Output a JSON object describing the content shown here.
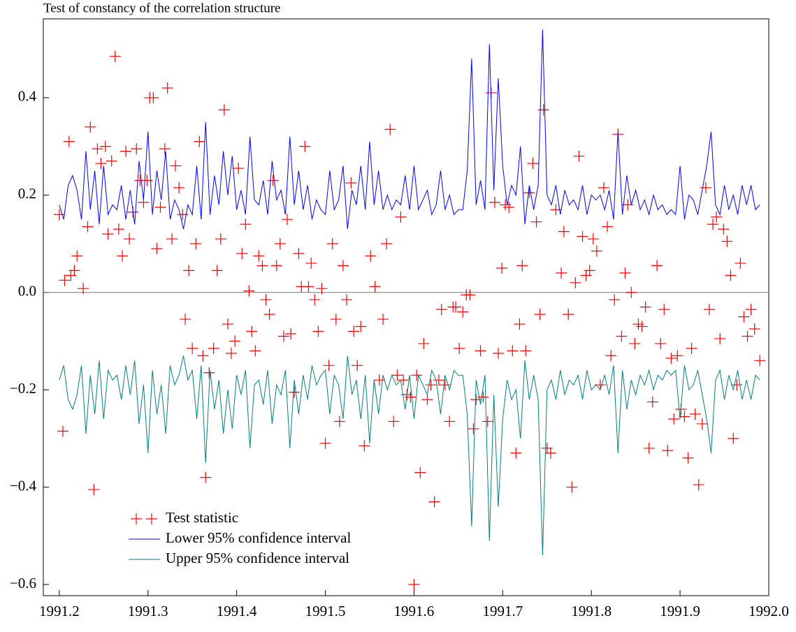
{
  "chart_data": {
    "type": "line",
    "title": "Test of constancy of the correlation structure",
    "xlim": [
      1991.182,
      1992.0
    ],
    "ylim": [
      -0.623,
      0.562
    ],
    "xticks": [
      1991.2,
      1991.3,
      1991.4,
      1991.5,
      1991.6,
      1991.7,
      1991.8,
      1991.9,
      {
        "value": 1992,
        "label": "1992.0"
      }
    ],
    "yticks": [
      {
        "value": -0.6,
        "label": "−0.6"
      },
      {
        "value": -0.4,
        "label": "−0.4"
      },
      {
        "value": -0.2,
        "label": "−0.2"
      },
      {
        "value": 0,
        "label": "0.0"
      },
      0.2,
      0.4
    ],
    "zero_line": true,
    "legend": "lower left",
    "x": [
      1991.2,
      1991.205,
      1991.21,
      1991.215,
      1991.22,
      1991.225,
      1991.23,
      1991.235,
      1991.24,
      1991.245,
      1991.25,
      1991.255,
      1991.26,
      1991.265,
      1991.27,
      1991.275,
      1991.28,
      1991.285,
      1991.29,
      1991.295,
      1991.3,
      1991.305,
      1991.31,
      1991.315,
      1991.32,
      1991.325,
      1991.33,
      1991.335,
      1991.34,
      1991.345,
      1991.35,
      1991.355,
      1991.36,
      1991.365,
      1991.37,
      1991.375,
      1991.38,
      1991.385,
      1991.39,
      1991.395,
      1991.4,
      1991.405,
      1991.41,
      1991.415,
      1991.42,
      1991.425,
      1991.43,
      1991.435,
      1991.44,
      1991.445,
      1991.45,
      1991.455,
      1991.46,
      1991.465,
      1991.47,
      1991.475,
      1991.48,
      1991.485,
      1991.49,
      1991.495,
      1991.5,
      1991.505,
      1991.51,
      1991.515,
      1991.52,
      1991.525,
      1991.53,
      1991.535,
      1991.54,
      1991.545,
      1991.55,
      1991.555,
      1991.56,
      1991.565,
      1991.57,
      1991.575,
      1991.58,
      1991.585,
      1991.59,
      1991.595,
      1991.6,
      1991.605,
      1991.61,
      1991.615,
      1991.62,
      1991.625,
      1991.63,
      1991.635,
      1991.64,
      1991.645,
      1991.65,
      1991.655,
      1991.66,
      1991.665,
      1991.67,
      1991.675,
      1991.68,
      1991.685,
      1991.69,
      1991.695,
      1991.7,
      1991.705,
      1991.71,
      1991.715,
      1991.72,
      1991.725,
      1991.73,
      1991.735,
      1991.74,
      1991.745,
      1991.75,
      1991.755,
      1991.76,
      1991.765,
      1991.77,
      1991.775,
      1991.78,
      1991.785,
      1991.79,
      1991.795,
      1991.8,
      1991.805,
      1991.81,
      1991.815,
      1991.82,
      1991.825,
      1991.83,
      1991.835,
      1991.84,
      1991.845,
      1991.85,
      1991.855,
      1991.86,
      1991.865,
      1991.87,
      1991.875,
      1991.88,
      1991.885,
      1991.89,
      1991.895,
      1991.9,
      1991.905,
      1991.91,
      1991.915,
      1991.92,
      1991.925,
      1991.93,
      1991.935,
      1991.94,
      1991.945,
      1991.95,
      1991.955,
      1991.96,
      1991.965,
      1991.97,
      1991.975,
      1991.98,
      1991.985,
      1991.99
    ],
    "series": [
      {
        "name": "Test statistic",
        "color": "#ff0000",
        "marker": "+",
        "x": [
          1991.2,
          1991.204,
          1991.206,
          1991.211,
          1991.213,
          1991.217,
          1991.22,
          1991.227,
          1991.232,
          1991.235,
          1991.239,
          1991.243,
          1991.247,
          1991.252,
          1991.255,
          1991.259,
          1991.263,
          1991.267,
          1991.271,
          1991.275,
          1991.279,
          1991.283,
          1991.287,
          1991.291,
          1991.295,
          1991.299,
          1991.302,
          1991.306,
          1991.31,
          1991.314,
          1991.319,
          1991.322,
          1991.327,
          1991.331,
          1991.335,
          1991.339,
          1991.342,
          1991.346,
          1991.35,
          1991.354,
          1991.358,
          1991.362,
          1991.365,
          1991.369,
          1991.374,
          1991.378,
          1991.382,
          1991.386,
          1991.39,
          1991.394,
          1991.398,
          1991.402,
          1991.406,
          1991.41,
          1991.414,
          1991.417,
          1991.421,
          1991.425,
          1991.429,
          1991.433,
          1991.437,
          1991.441,
          1991.445,
          1991.449,
          1991.453,
          1991.457,
          1991.461,
          1991.465,
          1991.47,
          1991.473,
          1991.477,
          1991.481,
          1991.484,
          1991.488,
          1991.492,
          1991.496,
          1991.5,
          1991.504,
          1991.508,
          1991.512,
          1991.516,
          1991.52,
          1991.524,
          1991.529,
          1991.532,
          1991.536,
          1991.54,
          1991.544,
          1991.551,
          1991.556,
          1991.561,
          1991.565,
          1991.569,
          1991.573,
          1991.577,
          1991.581,
          1991.585,
          1991.588,
          1991.592,
          1991.596,
          1991.6,
          1991.603,
          1991.607,
          1991.611,
          1991.615,
          1991.619,
          1991.623,
          1991.628,
          1991.631,
          1991.635,
          1991.64,
          1991.644,
          1991.647,
          1991.651,
          1991.655,
          1991.659,
          1991.663,
          1991.667,
          1991.67,
          1991.675,
          1991.678,
          1991.683,
          1991.687,
          1991.691,
          1991.695,
          1991.699,
          1991.703,
          1991.707,
          1991.711,
          1991.715,
          1991.719,
          1991.722,
          1991.726,
          1991.73,
          1991.734,
          1991.738,
          1991.742,
          1991.746,
          1991.75,
          1991.754,
          1991.76,
          1991.766,
          1991.769,
          1991.774,
          1991.778,
          1991.782,
          1991.786,
          1991.79,
          1991.794,
          1991.798,
          1991.802,
          1991.806,
          1991.81,
          1991.814,
          1991.818,
          1991.822,
          1991.826,
          1991.83,
          1991.834,
          1991.838,
          1991.841,
          1991.845,
          1991.849,
          1991.853,
          1991.857,
          1991.861,
          1991.865,
          1991.869,
          1991.874,
          1991.878,
          1991.882,
          1991.886,
          1991.89,
          1991.893,
          1991.897,
          1991.901,
          1991.905,
          1991.909,
          1991.913,
          1991.917,
          1991.921,
          1991.925,
          1991.929,
          1991.933,
          1991.937,
          1991.941,
          1991.945,
          1991.949,
          1991.953,
          1991.957,
          1991.96,
          1991.964,
          1991.968,
          1991.972,
          1991.976,
          1991.98,
          1991.984,
          1991.99
        ],
        "values": [
          0.16,
          -0.285,
          0.025,
          0.31,
          0.035,
          0.045,
          0.075,
          0.008,
          0.135,
          0.34,
          -0.405,
          0.295,
          0.265,
          0.3,
          0.12,
          0.27,
          0.485,
          0.13,
          0.075,
          0.29,
          0.11,
          0.165,
          0.295,
          0.23,
          0.185,
          0.23,
          0.4,
          0.4,
          0.09,
          0.175,
          0.295,
          0.42,
          0.11,
          0.26,
          0.215,
          0.16,
          -0.055,
          0.045,
          -0.115,
          0.1,
          0.31,
          -0.13,
          -0.38,
          -0.165,
          -0.115,
          0.045,
          0.11,
          0.375,
          -0.065,
          -0.125,
          -0.1,
          0.255,
          0.08,
          0.14,
          0.003,
          -0.08,
          -0.12,
          0.075,
          0.055,
          -0.015,
          -0.045,
          0.23,
          0.055,
          0.1,
          -0.09,
          0.15,
          -0.085,
          -0.205,
          0.08,
          0.012,
          0.3,
          0.012,
          0.06,
          -0.015,
          -0.08,
          0.008,
          -0.31,
          -0.15,
          0.1,
          -0.055,
          -0.265,
          0.055,
          -0.015,
          0.225,
          -0.08,
          -0.15,
          -0.07,
          -0.315,
          0.075,
          0.012,
          -0.18,
          -0.055,
          0.1,
          0.335,
          -0.265,
          -0.17,
          0.155,
          -0.18,
          -0.21,
          -0.215,
          -0.6,
          -0.17,
          -0.37,
          -0.105,
          -0.22,
          -0.19,
          -0.43,
          -0.18,
          -0.035,
          -0.19,
          -0.265,
          -0.03,
          -0.03,
          -0.115,
          -0.04,
          -0.005,
          -0.005,
          -0.28,
          -0.22,
          -0.12,
          -0.215,
          -0.265,
          0.41,
          0.185,
          -0.125,
          0.05,
          0.18,
          0.175,
          -0.12,
          -0.33,
          -0.065,
          0.055,
          -0.12,
          0.205,
          0.265,
          0.145,
          -0.045,
          0.375,
          -0.32,
          -0.33,
          0.17,
          0.04,
          0.125,
          -0.045,
          -0.4,
          0.02,
          0.28,
          0.115,
          0.035,
          0.045,
          0.11,
          0.085,
          -0.19,
          0.215,
          0.135,
          -0.13,
          -0.015,
          0.325,
          -0.09,
          0.04,
          0.18,
          0.0,
          -0.105,
          -0.065,
          -0.07,
          -0.03,
          -0.32,
          -0.225,
          0.055,
          -0.105,
          -0.035,
          -0.325,
          -0.135,
          -0.26,
          -0.13,
          -0.24,
          -0.255,
          -0.34,
          -0.115,
          -0.25,
          -0.395,
          -0.27,
          0.215,
          -0.035,
          0.14,
          0.155,
          -0.095,
          0.13,
          0.105,
          0.035,
          -0.3,
          -0.19,
          0.06,
          -0.05,
          -0.09,
          -0.035,
          -0.075,
          -0.14
        ]
      },
      {
        "name": "Lower 95% confidence interval",
        "color": "#0000ff",
        "values": [
          0.18,
          0.15,
          0.22,
          0.24,
          0.21,
          0.15,
          0.29,
          0.17,
          0.25,
          0.14,
          0.26,
          0.16,
          0.18,
          0.17,
          0.22,
          0.15,
          0.21,
          0.14,
          0.27,
          0.19,
          0.33,
          0.16,
          0.25,
          0.19,
          0.29,
          0.15,
          0.19,
          0.17,
          0.13,
          0.18,
          0.16,
          0.26,
          0.15,
          0.35,
          0.16,
          0.24,
          0.18,
          0.29,
          0.2,
          0.28,
          0.17,
          0.21,
          0.16,
          0.32,
          0.19,
          0.18,
          0.23,
          0.16,
          0.27,
          0.19,
          0.21,
          0.16,
          0.32,
          0.18,
          0.25,
          0.17,
          0.22,
          0.15,
          0.19,
          0.17,
          0.16,
          0.25,
          0.17,
          0.19,
          0.26,
          0.13,
          0.21,
          0.18,
          0.26,
          0.17,
          0.31,
          0.18,
          0.25,
          0.17,
          0.2,
          0.17,
          0.19,
          0.18,
          0.24,
          0.17,
          0.26,
          0.17,
          0.19,
          0.21,
          0.16,
          0.18,
          0.25,
          0.17,
          0.2,
          0.16,
          0.17,
          0.17,
          0.25,
          0.48,
          0.18,
          0.23,
          0.17,
          0.51,
          0.21,
          0.44,
          0.26,
          0.18,
          0.22,
          0.2,
          0.3,
          0.14,
          0.22,
          0.17,
          0.22,
          0.54,
          0.2,
          0.18,
          0.22,
          0.16,
          0.21,
          0.18,
          0.19,
          0.17,
          0.22,
          0.16,
          0.2,
          0.19,
          0.2,
          0.17,
          0.21,
          0.15,
          0.33,
          0.16,
          0.24,
          0.18,
          0.21,
          0.17,
          0.19,
          0.16,
          0.2,
          0.17,
          0.18,
          0.16,
          0.17,
          0.16,
          0.26,
          0.15,
          0.2,
          0.19,
          0.16,
          0.21,
          0.26,
          0.33,
          0.18,
          0.16,
          0.22,
          0.17,
          0.2,
          0.16,
          0.22,
          0.18,
          0.22,
          0.17,
          0.18
        ]
      },
      {
        "name": "Upper 95% confidence interval",
        "color": "#008080",
        "values": [
          -0.18,
          -0.15,
          -0.22,
          -0.24,
          -0.21,
          -0.15,
          -0.29,
          -0.17,
          -0.25,
          -0.14,
          -0.26,
          -0.16,
          -0.18,
          -0.17,
          -0.22,
          -0.15,
          -0.21,
          -0.14,
          -0.27,
          -0.19,
          -0.33,
          -0.16,
          -0.25,
          -0.19,
          -0.29,
          -0.15,
          -0.19,
          -0.17,
          -0.13,
          -0.18,
          -0.16,
          -0.26,
          -0.15,
          -0.35,
          -0.16,
          -0.24,
          -0.18,
          -0.29,
          -0.2,
          -0.28,
          -0.17,
          -0.21,
          -0.16,
          -0.32,
          -0.19,
          -0.18,
          -0.23,
          -0.16,
          -0.27,
          -0.19,
          -0.21,
          -0.16,
          -0.32,
          -0.18,
          -0.25,
          -0.17,
          -0.22,
          -0.15,
          -0.19,
          -0.17,
          -0.16,
          -0.25,
          -0.17,
          -0.19,
          -0.26,
          -0.13,
          -0.21,
          -0.18,
          -0.26,
          -0.17,
          -0.31,
          -0.18,
          -0.25,
          -0.17,
          -0.2,
          -0.17,
          -0.19,
          -0.18,
          -0.24,
          -0.17,
          -0.26,
          -0.17,
          -0.19,
          -0.21,
          -0.16,
          -0.18,
          -0.25,
          -0.17,
          -0.2,
          -0.16,
          -0.17,
          -0.17,
          -0.25,
          -0.48,
          -0.18,
          -0.23,
          -0.17,
          -0.51,
          -0.21,
          -0.44,
          -0.26,
          -0.18,
          -0.22,
          -0.2,
          -0.3,
          -0.14,
          -0.22,
          -0.17,
          -0.22,
          -0.54,
          -0.2,
          -0.18,
          -0.22,
          -0.16,
          -0.21,
          -0.18,
          -0.19,
          -0.17,
          -0.22,
          -0.16,
          -0.2,
          -0.19,
          -0.2,
          -0.17,
          -0.21,
          -0.15,
          -0.33,
          -0.16,
          -0.24,
          -0.18,
          -0.21,
          -0.17,
          -0.19,
          -0.16,
          -0.2,
          -0.17,
          -0.18,
          -0.16,
          -0.17,
          -0.16,
          -0.26,
          -0.15,
          -0.2,
          -0.19,
          -0.16,
          -0.21,
          -0.26,
          -0.33,
          -0.18,
          -0.16,
          -0.22,
          -0.17,
          -0.2,
          -0.16,
          -0.22,
          -0.18,
          -0.22,
          -0.17,
          -0.18
        ]
      }
    ]
  }
}
